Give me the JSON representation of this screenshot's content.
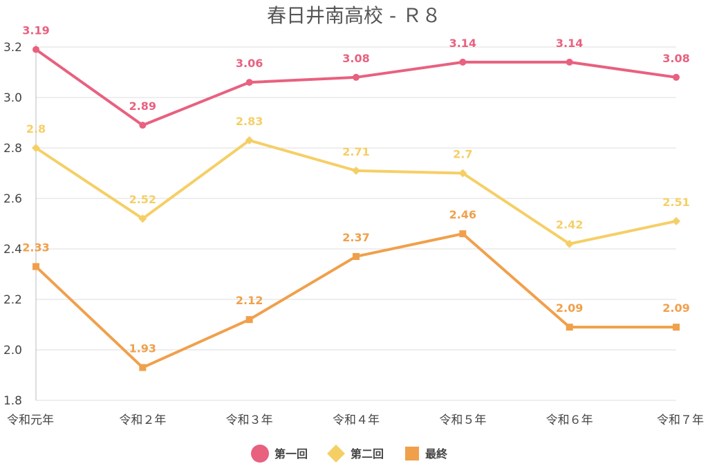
{
  "chart_data": {
    "type": "line",
    "title": "春日井南高校 - Ｒ８",
    "xlabel": "",
    "ylabel": "",
    "categories": [
      "令和元年",
      "令和２年",
      "令和３年",
      "令和４年",
      "令和５年",
      "令和６年",
      "令和７年"
    ],
    "ylim": [
      1.8,
      3.2
    ],
    "yticks": [
      "1.8",
      "2.0",
      "2.2",
      "2.4",
      "2.6",
      "2.8",
      "3.0",
      "3.2"
    ],
    "grid": true,
    "legend_position": "bottom-center",
    "series": [
      {
        "name": "第一回",
        "marker": "circle",
        "color": "#e8617f",
        "values": [
          3.19,
          2.89,
          3.06,
          3.08,
          3.14,
          3.14,
          3.08
        ],
        "labels": [
          "3.19",
          "2.89",
          "3.06",
          "3.08",
          "3.14",
          "3.14",
          "3.08"
        ]
      },
      {
        "name": "第二回",
        "marker": "diamond",
        "color": "#f5cf66",
        "values": [
          2.8,
          2.52,
          2.83,
          2.71,
          2.7,
          2.42,
          2.51
        ],
        "labels": [
          "2.8",
          "2.52",
          "2.83",
          "2.71",
          "2.7",
          "2.42",
          "2.51"
        ]
      },
      {
        "name": "最終",
        "marker": "square",
        "color": "#f0a04b",
        "values": [
          2.33,
          1.93,
          2.12,
          2.37,
          2.46,
          2.09,
          2.09
        ],
        "labels": [
          "2.33",
          "1.93",
          "2.12",
          "2.37",
          "2.46",
          "2.09",
          "2.09"
        ]
      }
    ]
  }
}
